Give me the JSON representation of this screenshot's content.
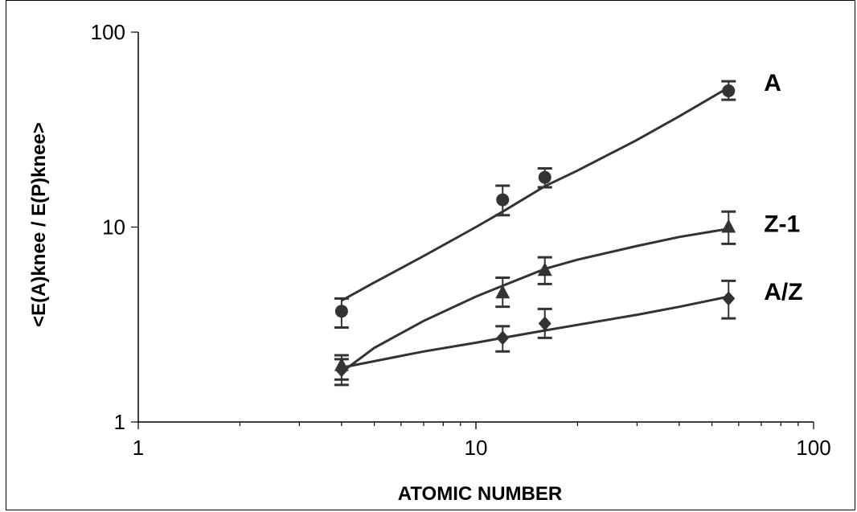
{
  "chart_data": {
    "type": "scatter",
    "title": "",
    "xlabel": "ATOMIC NUMBER",
    "ylabel": "<E(A)knee / E(P)knee>",
    "xscale": "log",
    "yscale": "log",
    "xlim": [
      1,
      100
    ],
    "ylim": [
      1,
      100
    ],
    "x_ticks": [
      {
        "value": 1,
        "label": "1"
      },
      {
        "value": 10,
        "label": "10"
      },
      {
        "value": 100,
        "label": "100"
      }
    ],
    "y_ticks": [
      {
        "value": 1,
        "label": "1"
      },
      {
        "value": 10,
        "label": "10"
      },
      {
        "value": 100,
        "label": "100"
      }
    ],
    "grid": false,
    "legend": "none",
    "series": [
      {
        "name": "A",
        "marker": "circle",
        "x": [
          4,
          12,
          16,
          56
        ],
        "y": [
          3.7,
          13.8,
          18,
          50
        ],
        "y_err_low": [
          3.05,
          11.5,
          16,
          45
        ],
        "y_err_high": [
          4.3,
          16.3,
          20,
          56
        ],
        "fit": [
          [
            4,
            4.2
          ],
          [
            5,
            5.2
          ],
          [
            7,
            7.1
          ],
          [
            10,
            10
          ],
          [
            12,
            12
          ],
          [
            16,
            16.2
          ],
          [
            20,
            19.5
          ],
          [
            30,
            28
          ],
          [
            40,
            37
          ],
          [
            56,
            52
          ]
        ]
      },
      {
        "name": "Z-1",
        "marker": "triangle",
        "x": [
          4,
          12,
          16,
          56
        ],
        "y": [
          1.95,
          4.6,
          6,
          10
        ],
        "y_err_low": [
          1.65,
          3.9,
          5.1,
          8.2
        ],
        "y_err_high": [
          2.2,
          5.5,
          7,
          12
        ],
        "fit": [
          [
            4,
            1.8
          ],
          [
            5,
            2.4
          ],
          [
            7,
            3.3
          ],
          [
            10,
            4.4
          ],
          [
            12,
            5
          ],
          [
            16,
            6.1
          ],
          [
            20,
            6.8
          ],
          [
            30,
            8
          ],
          [
            40,
            8.9
          ],
          [
            56,
            9.8
          ]
        ]
      },
      {
        "name": "A/Z",
        "marker": "diamond",
        "x": [
          4,
          12,
          16,
          56
        ],
        "y": [
          1.85,
          2.7,
          3.2,
          4.3
        ],
        "y_err_low": [
          1.55,
          2.3,
          2.7,
          3.4
        ],
        "y_err_high": [
          2.1,
          3.1,
          3.8,
          5.3
        ],
        "fit": [
          [
            4,
            1.9
          ],
          [
            5,
            2.05
          ],
          [
            7,
            2.3
          ],
          [
            10,
            2.55
          ],
          [
            12,
            2.7
          ],
          [
            16,
            2.95
          ],
          [
            20,
            3.15
          ],
          [
            30,
            3.55
          ],
          [
            40,
            3.9
          ],
          [
            56,
            4.4
          ]
        ]
      }
    ]
  },
  "colors": {
    "series": "#333333",
    "axis": "#000000",
    "errorbar_accent": "#1a2a9a"
  }
}
